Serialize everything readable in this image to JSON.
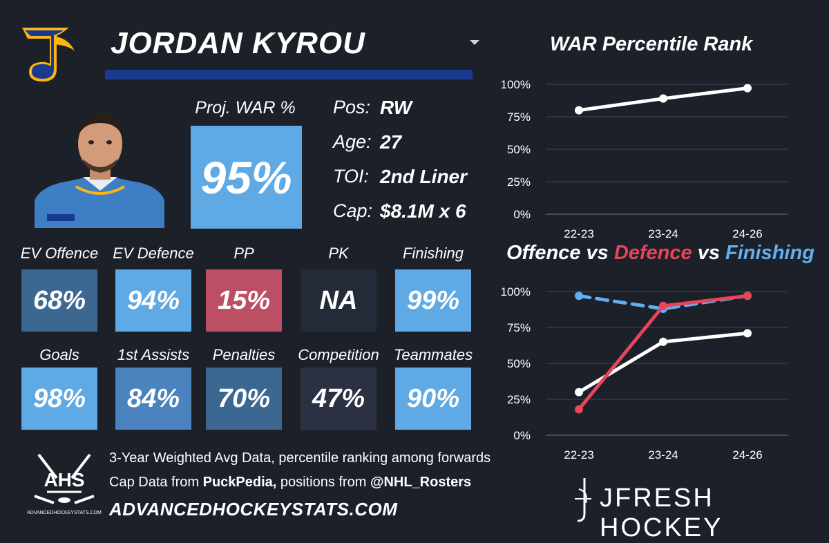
{
  "header": {
    "player_name": "JORDAN KYROU"
  },
  "colors": {
    "background": "#1b2029",
    "team_blue": "#1a3a8f",
    "light_blue": "#5fa9e4",
    "mid_blue": "#4a83bd",
    "dark_blue": "#3b6791",
    "red": "#bd4f64",
    "dark_slate": "#232a38",
    "defence_red": "#e8455a",
    "finishing_blue": "#63aef0"
  },
  "war": {
    "label": "Proj. WAR %",
    "value": "95%"
  },
  "info": [
    {
      "label": "Pos:",
      "value": "RW"
    },
    {
      "label": "Age:",
      "value": "27"
    },
    {
      "label": "TOI:",
      "value": "2nd Liner"
    },
    {
      "label": "Cap:",
      "value": "$8.1M x 6"
    }
  ],
  "categories_row1": [
    {
      "label": "EV Offence",
      "value": "68%",
      "color": "#3b6791"
    },
    {
      "label": "EV Defence",
      "value": "94%",
      "color": "#5fa9e4"
    },
    {
      "label": "PP",
      "value": "15%",
      "color": "#bd4f64"
    },
    {
      "label": "PK",
      "value": "NA",
      "color": "#232a38"
    },
    {
      "label": "Finishing",
      "value": "99%",
      "color": "#5fa9e4"
    }
  ],
  "categories_row2": [
    {
      "label": "Goals",
      "value": "98%",
      "color": "#5fa9e4"
    },
    {
      "label": "1st Assists",
      "value": "84%",
      "color": "#4a83bd"
    },
    {
      "label": "Penalties",
      "value": "70%",
      "color": "#3b6791"
    },
    {
      "label": "Competition",
      "value": "47%",
      "color": "#2b3142"
    },
    {
      "label": "Teammates",
      "value": "90%",
      "color": "#5fa9e4"
    }
  ],
  "footer": {
    "line1": "3-Year Weighted Avg Data, percentile ranking among forwards",
    "line2_prefix": "Cap Data from ",
    "line2_source1": "PuckPedia,",
    "line2_middle": " positions from ",
    "line2_source2": "@NHL_Rosters",
    "url": "ADVANCEDHOCKEYSTATS.COM",
    "ahs_logo_text": "AHS",
    "ahs_logo_url": "ADVANCEDHOCKEYSTATS.COM",
    "brand": "JFRESH HOCKEY"
  },
  "chart_data": [
    {
      "type": "line",
      "title": "WAR Percentile Rank",
      "categories": [
        "22-23",
        "23-24",
        "24-26"
      ],
      "y_tick_labels": [
        "100%",
        "75%",
        "50%",
        "25%",
        "0%"
      ],
      "ylim": [
        0,
        100
      ],
      "grid": true,
      "series": [
        {
          "values": [
            80,
            89,
            97
          ],
          "color": "#ffffff",
          "dashed": false
        }
      ]
    },
    {
      "type": "line",
      "title_parts": [
        {
          "text": "Offence vs ",
          "color": "#ffffff"
        },
        {
          "text": "Defence",
          "color": "#e8455a"
        },
        {
          "text": " vs ",
          "color": "#ffffff"
        },
        {
          "text": "Finishing",
          "color": "#63aef0"
        }
      ],
      "categories": [
        "22-23",
        "23-24",
        "24-26"
      ],
      "y_tick_labels": [
        "100%",
        "75%",
        "50%",
        "25%",
        "0%"
      ],
      "ylim": [
        0,
        100
      ],
      "grid": true,
      "series": [
        {
          "name": "Finishing",
          "values": [
            97,
            88,
            97
          ],
          "color": "#63aef0",
          "dashed": true
        },
        {
          "name": "Offence",
          "values": [
            30,
            65,
            71
          ],
          "color": "#ffffff",
          "dashed": false
        },
        {
          "name": "Defence",
          "values": [
            18,
            90,
            97
          ],
          "color": "#e8455a",
          "dashed": false
        }
      ]
    }
  ]
}
